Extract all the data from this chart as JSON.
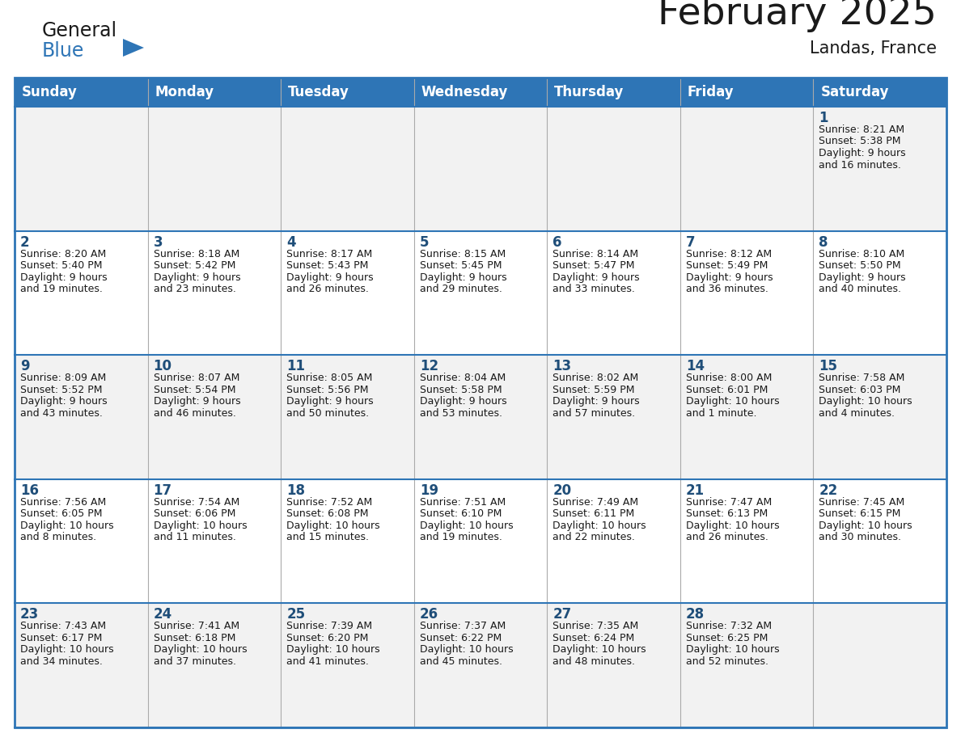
{
  "title": "February 2025",
  "subtitle": "Landas, France",
  "header_bg": "#2E75B6",
  "header_text": "#FFFFFF",
  "cell_bg_light": "#F2F2F2",
  "cell_bg_white": "#FFFFFF",
  "day_num_color": "#1F4E79",
  "text_color": "#1a1a1a",
  "border_color": "#2E75B6",
  "days_of_week": [
    "Sunday",
    "Monday",
    "Tuesday",
    "Wednesday",
    "Thursday",
    "Friday",
    "Saturday"
  ],
  "weeks": [
    [
      null,
      null,
      null,
      null,
      null,
      null,
      1
    ],
    [
      2,
      3,
      4,
      5,
      6,
      7,
      8
    ],
    [
      9,
      10,
      11,
      12,
      13,
      14,
      15
    ],
    [
      16,
      17,
      18,
      19,
      20,
      21,
      22
    ],
    [
      23,
      24,
      25,
      26,
      27,
      28,
      null
    ]
  ],
  "cell_data": {
    "1": {
      "sunrise": "8:21 AM",
      "sunset": "5:38 PM",
      "daylight_h": "9 hours",
      "daylight_m": "16 minutes"
    },
    "2": {
      "sunrise": "8:20 AM",
      "sunset": "5:40 PM",
      "daylight_h": "9 hours",
      "daylight_m": "19 minutes"
    },
    "3": {
      "sunrise": "8:18 AM",
      "sunset": "5:42 PM",
      "daylight_h": "9 hours",
      "daylight_m": "23 minutes"
    },
    "4": {
      "sunrise": "8:17 AM",
      "sunset": "5:43 PM",
      "daylight_h": "9 hours",
      "daylight_m": "26 minutes"
    },
    "5": {
      "sunrise": "8:15 AM",
      "sunset": "5:45 PM",
      "daylight_h": "9 hours",
      "daylight_m": "29 minutes"
    },
    "6": {
      "sunrise": "8:14 AM",
      "sunset": "5:47 PM",
      "daylight_h": "9 hours",
      "daylight_m": "33 minutes"
    },
    "7": {
      "sunrise": "8:12 AM",
      "sunset": "5:49 PM",
      "daylight_h": "9 hours",
      "daylight_m": "36 minutes"
    },
    "8": {
      "sunrise": "8:10 AM",
      "sunset": "5:50 PM",
      "daylight_h": "9 hours",
      "daylight_m": "40 minutes"
    },
    "9": {
      "sunrise": "8:09 AM",
      "sunset": "5:52 PM",
      "daylight_h": "9 hours",
      "daylight_m": "43 minutes"
    },
    "10": {
      "sunrise": "8:07 AM",
      "sunset": "5:54 PM",
      "daylight_h": "9 hours",
      "daylight_m": "46 minutes"
    },
    "11": {
      "sunrise": "8:05 AM",
      "sunset": "5:56 PM",
      "daylight_h": "9 hours",
      "daylight_m": "50 minutes"
    },
    "12": {
      "sunrise": "8:04 AM",
      "sunset": "5:58 PM",
      "daylight_h": "9 hours",
      "daylight_m": "53 minutes"
    },
    "13": {
      "sunrise": "8:02 AM",
      "sunset": "5:59 PM",
      "daylight_h": "9 hours",
      "daylight_m": "57 minutes"
    },
    "14": {
      "sunrise": "8:00 AM",
      "sunset": "6:01 PM",
      "daylight_h": "10 hours",
      "daylight_m": "1 minute"
    },
    "15": {
      "sunrise": "7:58 AM",
      "sunset": "6:03 PM",
      "daylight_h": "10 hours",
      "daylight_m": "4 minutes"
    },
    "16": {
      "sunrise": "7:56 AM",
      "sunset": "6:05 PM",
      "daylight_h": "10 hours",
      "daylight_m": "8 minutes"
    },
    "17": {
      "sunrise": "7:54 AM",
      "sunset": "6:06 PM",
      "daylight_h": "10 hours",
      "daylight_m": "11 minutes"
    },
    "18": {
      "sunrise": "7:52 AM",
      "sunset": "6:08 PM",
      "daylight_h": "10 hours",
      "daylight_m": "15 minutes"
    },
    "19": {
      "sunrise": "7:51 AM",
      "sunset": "6:10 PM",
      "daylight_h": "10 hours",
      "daylight_m": "19 minutes"
    },
    "20": {
      "sunrise": "7:49 AM",
      "sunset": "6:11 PM",
      "daylight_h": "10 hours",
      "daylight_m": "22 minutes"
    },
    "21": {
      "sunrise": "7:47 AM",
      "sunset": "6:13 PM",
      "daylight_h": "10 hours",
      "daylight_m": "26 minutes"
    },
    "22": {
      "sunrise": "7:45 AM",
      "sunset": "6:15 PM",
      "daylight_h": "10 hours",
      "daylight_m": "30 minutes"
    },
    "23": {
      "sunrise": "7:43 AM",
      "sunset": "6:17 PM",
      "daylight_h": "10 hours",
      "daylight_m": "34 minutes"
    },
    "24": {
      "sunrise": "7:41 AM",
      "sunset": "6:18 PM",
      "daylight_h": "10 hours",
      "daylight_m": "37 minutes"
    },
    "25": {
      "sunrise": "7:39 AM",
      "sunset": "6:20 PM",
      "daylight_h": "10 hours",
      "daylight_m": "41 minutes"
    },
    "26": {
      "sunrise": "7:37 AM",
      "sunset": "6:22 PM",
      "daylight_h": "10 hours",
      "daylight_m": "45 minutes"
    },
    "27": {
      "sunrise": "7:35 AM",
      "sunset": "6:24 PM",
      "daylight_h": "10 hours",
      "daylight_m": "48 minutes"
    },
    "28": {
      "sunrise": "7:32 AM",
      "sunset": "6:25 PM",
      "daylight_h": "10 hours",
      "daylight_m": "52 minutes"
    }
  },
  "figsize": [
    11.88,
    9.18
  ],
  "dpi": 100
}
